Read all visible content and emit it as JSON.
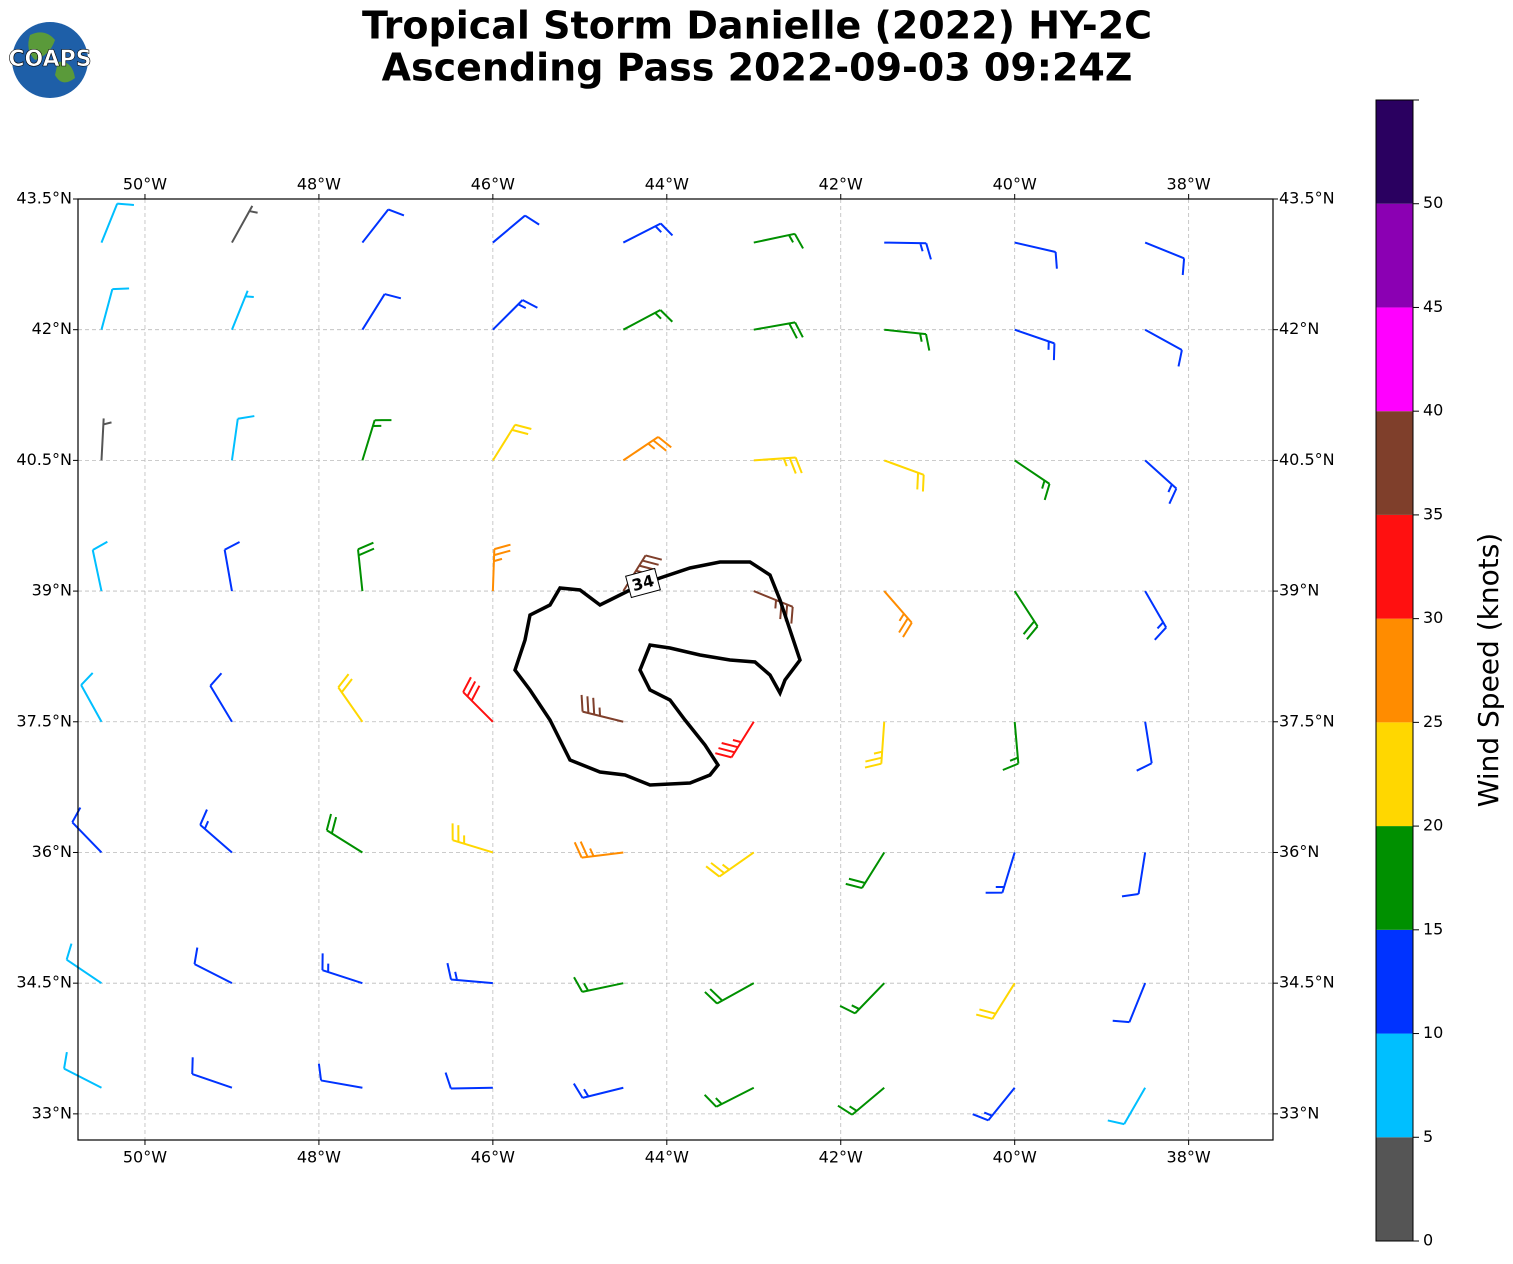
{
  "chart_data": {
    "type": "barbs",
    "title": "Tropical Storm Danielle (2022) HY-2C",
    "subtitle": "Ascending Pass 2022-09-03 09:24Z",
    "logo": "COAPS",
    "xlim": [
      -50.77,
      -37.03
    ],
    "ylim": [
      32.7,
      43.5
    ],
    "xticks": [
      {
        "value": -50,
        "label": "50°W"
      },
      {
        "value": -48,
        "label": "48°W"
      },
      {
        "value": -46,
        "label": "46°W"
      },
      {
        "value": -44,
        "label": "44°W"
      },
      {
        "value": -42,
        "label": "42°W"
      },
      {
        "value": -40,
        "label": "40°W"
      },
      {
        "value": -38,
        "label": "38°W"
      }
    ],
    "yticks": [
      {
        "value": 33,
        "label": "33°N"
      },
      {
        "value": 34.5,
        "label": "34.5°N"
      },
      {
        "value": 36,
        "label": "36°N"
      },
      {
        "value": 37.5,
        "label": "37.5°N"
      },
      {
        "value": 39,
        "label": "39°N"
      },
      {
        "value": 40.5,
        "label": "40.5°N"
      },
      {
        "value": 42,
        "label": "42°N"
      },
      {
        "value": 43.5,
        "label": "43.5°N"
      }
    ],
    "grid": true,
    "lats": [
      43,
      42,
      40.5,
      39,
      37.5,
      36,
      34.5,
      33.3
    ],
    "lons": [
      -50.5,
      -49,
      -47.5,
      -46,
      -44.5,
      -43,
      -41.5,
      -40,
      -38.5
    ],
    "speed": [
      [
        8,
        3,
        12,
        12,
        14,
        17,
        13,
        12,
        11
      ],
      [
        8,
        7,
        11,
        13,
        16,
        18,
        16,
        13,
        11
      ],
      [
        4,
        9,
        17,
        22,
        27,
        24,
        20,
        17,
        14
      ],
      [
        8,
        12,
        18,
        27,
        37,
        36,
        27,
        18,
        13
      ],
      [
        8,
        12,
        22,
        32,
        37,
        33,
        24,
        15,
        12
      ],
      [
        12,
        13,
        18,
        23,
        27,
        23,
        18,
        14,
        12
      ],
      [
        8,
        12,
        13,
        14,
        17,
        18,
        17,
        22,
        11
      ],
      [
        8,
        12,
        12,
        12,
        14,
        16,
        17,
        13,
        9
      ]
    ],
    "direction": [
      [
        22,
        29,
        38,
        50,
        63,
        78,
        91,
        103,
        112
      ],
      [
        15,
        22,
        32,
        45,
        62,
        80,
        96,
        109,
        119
      ],
      [
        3,
        8,
        17,
        32,
        56,
        86,
        110,
        124,
        132
      ],
      [
        348,
        350,
        354,
        2,
        32,
        112,
        139,
        147,
        150
      ],
      [
        331,
        329,
        325,
        315,
        284,
        212,
        184,
        175,
        171
      ],
      [
        316,
        311,
        302,
        287,
        263,
        235,
        212,
        197,
        189
      ],
      [
        304,
        297,
        288,
        275,
        258,
        241,
        224,
        212,
        202
      ],
      [
        297,
        289,
        280,
        269,
        256,
        243,
        230,
        219,
        210
      ]
    ],
    "contour": {
      "level": 34
    },
    "colorbar": {
      "label": "Wind Speed (knots)",
      "lim": [
        0,
        55
      ],
      "bounds": [
        0,
        5,
        10,
        15,
        20,
        25,
        30,
        35,
        40,
        45,
        50,
        55
      ],
      "colors": [
        "#555555",
        "#00bfff",
        "#0033ff",
        "#009000",
        "#ffd700",
        "#ff8c00",
        "#ff1010",
        "#7f3f2b",
        "#ff00ff",
        "#8b00b3",
        "#2a0060"
      ],
      "ticks": [
        0,
        5,
        10,
        15,
        20,
        25,
        30,
        35,
        40,
        45,
        50
      ]
    }
  }
}
